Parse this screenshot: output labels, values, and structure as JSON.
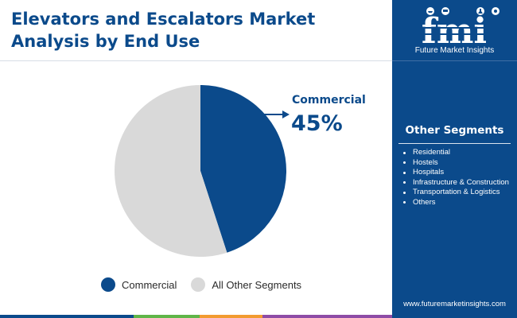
{
  "header": {
    "title_line1": "Elevators and Escalators Market",
    "title_line2": "Analysis by End Use"
  },
  "brand": {
    "logo_text": "fmi",
    "caption": "Future Market Insights",
    "url": "www.futuremarketinsights.com",
    "logo_icons": [
      "ship-icon",
      "cow-icon",
      "chemistry-icon",
      "gear-icon"
    ]
  },
  "sidebar": {
    "title": "Other Segments",
    "items": [
      "Residential",
      "Hostels",
      "Hospitals",
      "Infrastructure & Construction",
      "Transportation & Logistics",
      "Others"
    ]
  },
  "callout": {
    "label": "Commercial",
    "value": "45%"
  },
  "legend": [
    {
      "label": "Commercial",
      "color": "#0b4a8b"
    },
    {
      "label": "All Other Segments",
      "color": "#d9d9d9"
    }
  ],
  "colors": {
    "primary": "#0b4a8b",
    "other": "#d9d9d9",
    "bottom_bar": [
      "#0b4a8b",
      "#5fb548",
      "#f29b30",
      "#8e4ca6"
    ]
  },
  "chart_data": {
    "type": "pie",
    "title": "Elevators and Escalators Market Analysis by End Use",
    "categories": [
      "Commercial",
      "All Other Segments"
    ],
    "values": [
      45,
      55
    ],
    "unit": "%",
    "colors": [
      "#0b4a8b",
      "#d9d9d9"
    ],
    "start_angle_deg": 0,
    "direction": "clockwise",
    "legend_position": "bottom"
  }
}
